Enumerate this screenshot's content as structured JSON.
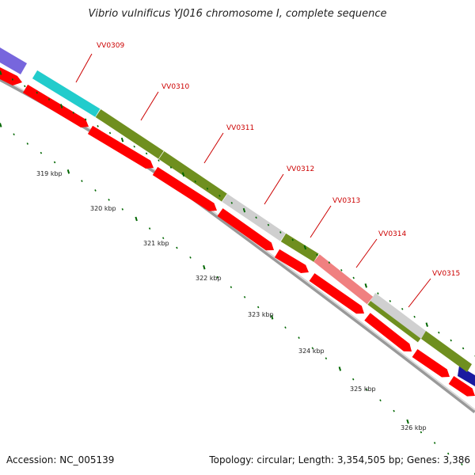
{
  "title": "Vibrio vulnificus YJ016 chromosome I, complete sequence",
  "footer": {
    "accession": "Accession: NC_005139",
    "summary": "Topology: circular; Length: 3,354,505 bp; Genes: 3,386"
  },
  "colors": {
    "cds_red": "#ff0000",
    "backbone": "#999999",
    "tick_green": "#006600",
    "label_red": "#cc0000"
  },
  "genes": [
    {
      "name": "VV0309",
      "color": "#22cccc"
    },
    {
      "name": "VV0310",
      "color": "#6f8f1f"
    },
    {
      "name": "VV0311",
      "color": "#6f8f1f"
    },
    {
      "name": "VV0312",
      "color": "#6f8f1f"
    },
    {
      "name": "VV0313",
      "color": "#6f8f1f"
    },
    {
      "name": "VV0314",
      "color": "#f08080"
    },
    {
      "name": "VV0315",
      "color": "#6f8f1f"
    }
  ],
  "kbp_labels": [
    "319 kbp",
    "320 kbp",
    "321 kbp",
    "322 kbp",
    "323 kbp",
    "324 kbp",
    "325 kbp",
    "326 kbp"
  ]
}
